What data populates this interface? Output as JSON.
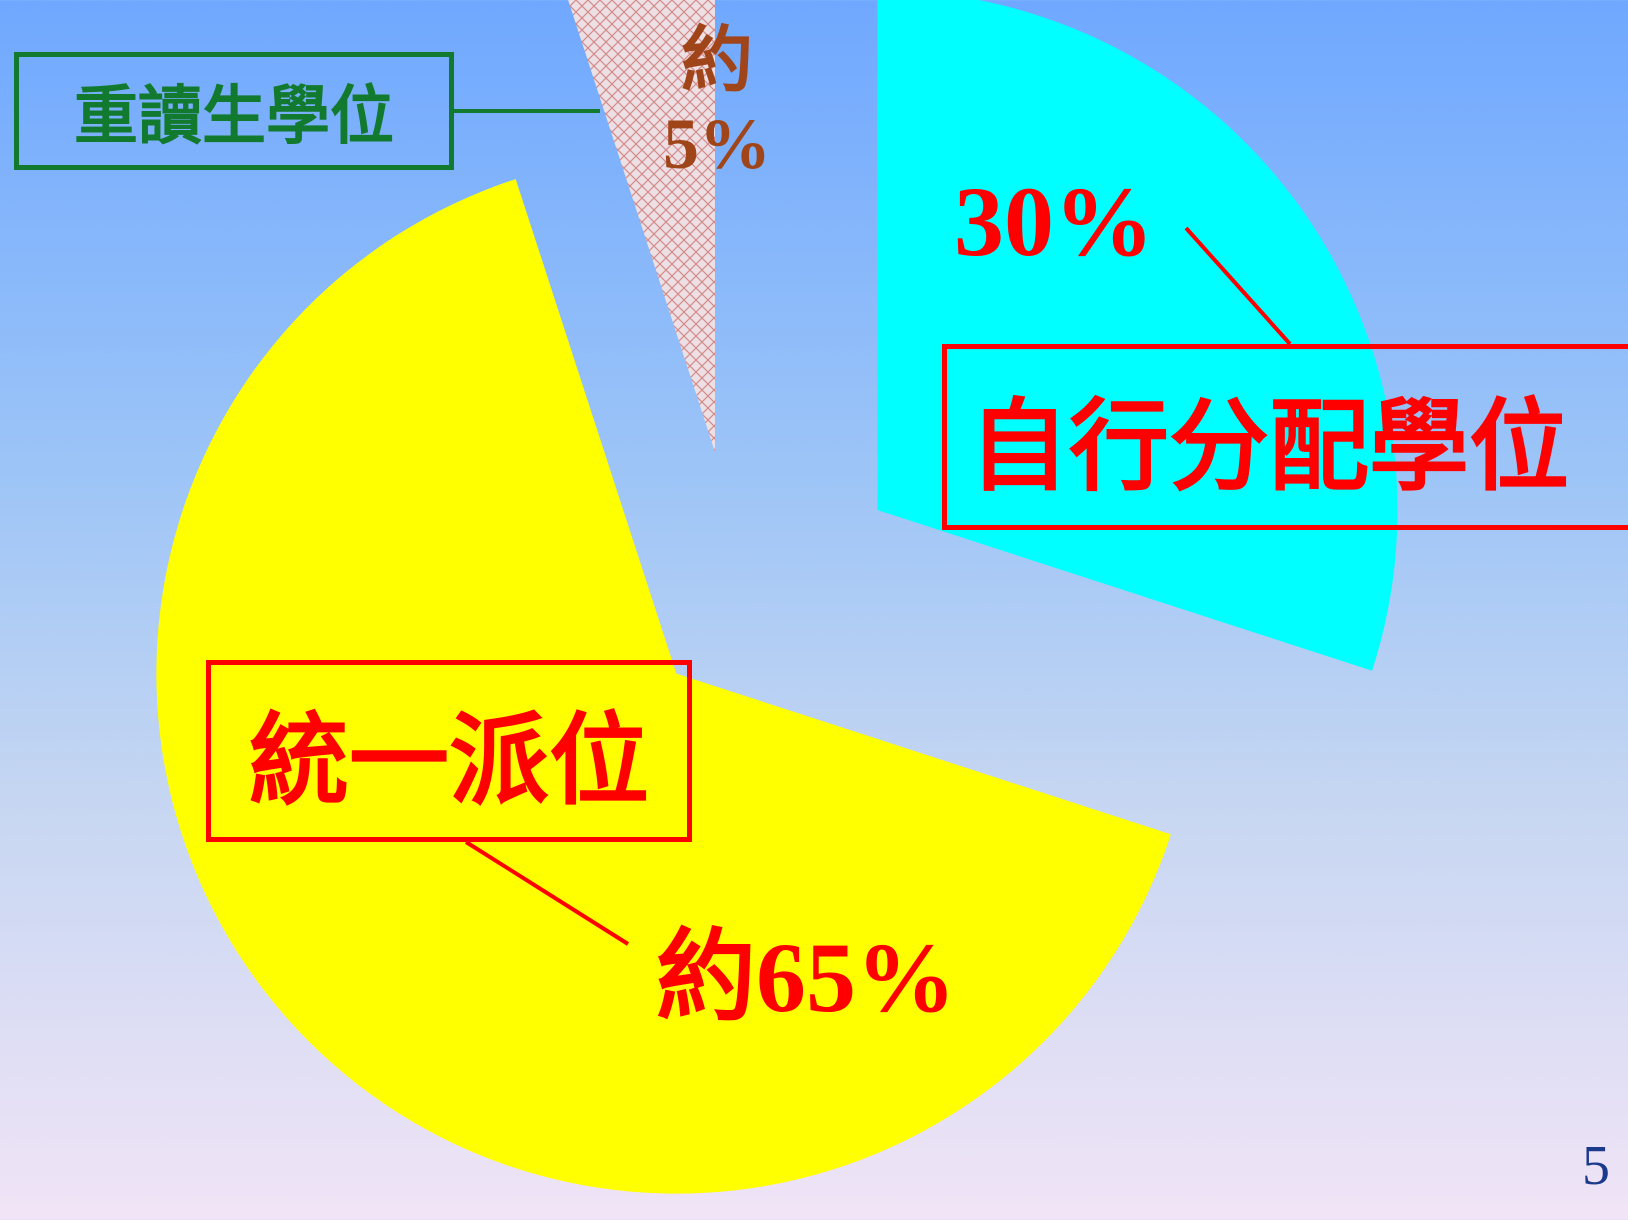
{
  "chart_data": {
    "type": "pie",
    "title": "",
    "categories": [
      "自行分配學位",
      "統一派位",
      "重讀生學位"
    ],
    "values": [
      30,
      65,
      5
    ],
    "value_labels": [
      "30%",
      "約65%",
      "約5%"
    ],
    "colors": [
      "#00ffff",
      "#ffff00",
      "#e6ccd1"
    ],
    "exploded": true,
    "legend": "none"
  },
  "labels": {
    "self_allocated": "自行分配學位",
    "unified": "統一派位",
    "repeaters": "重讀生學位",
    "pct_self": "30%",
    "pct_unified": "約65%",
    "pct_repeat": "約5%"
  },
  "colors": {
    "repeat_label": "#127a2e",
    "main_label": "#ff0000",
    "repeat_pct": "#a0441a",
    "page_number": "#1c3a8c"
  },
  "page_number": "5"
}
